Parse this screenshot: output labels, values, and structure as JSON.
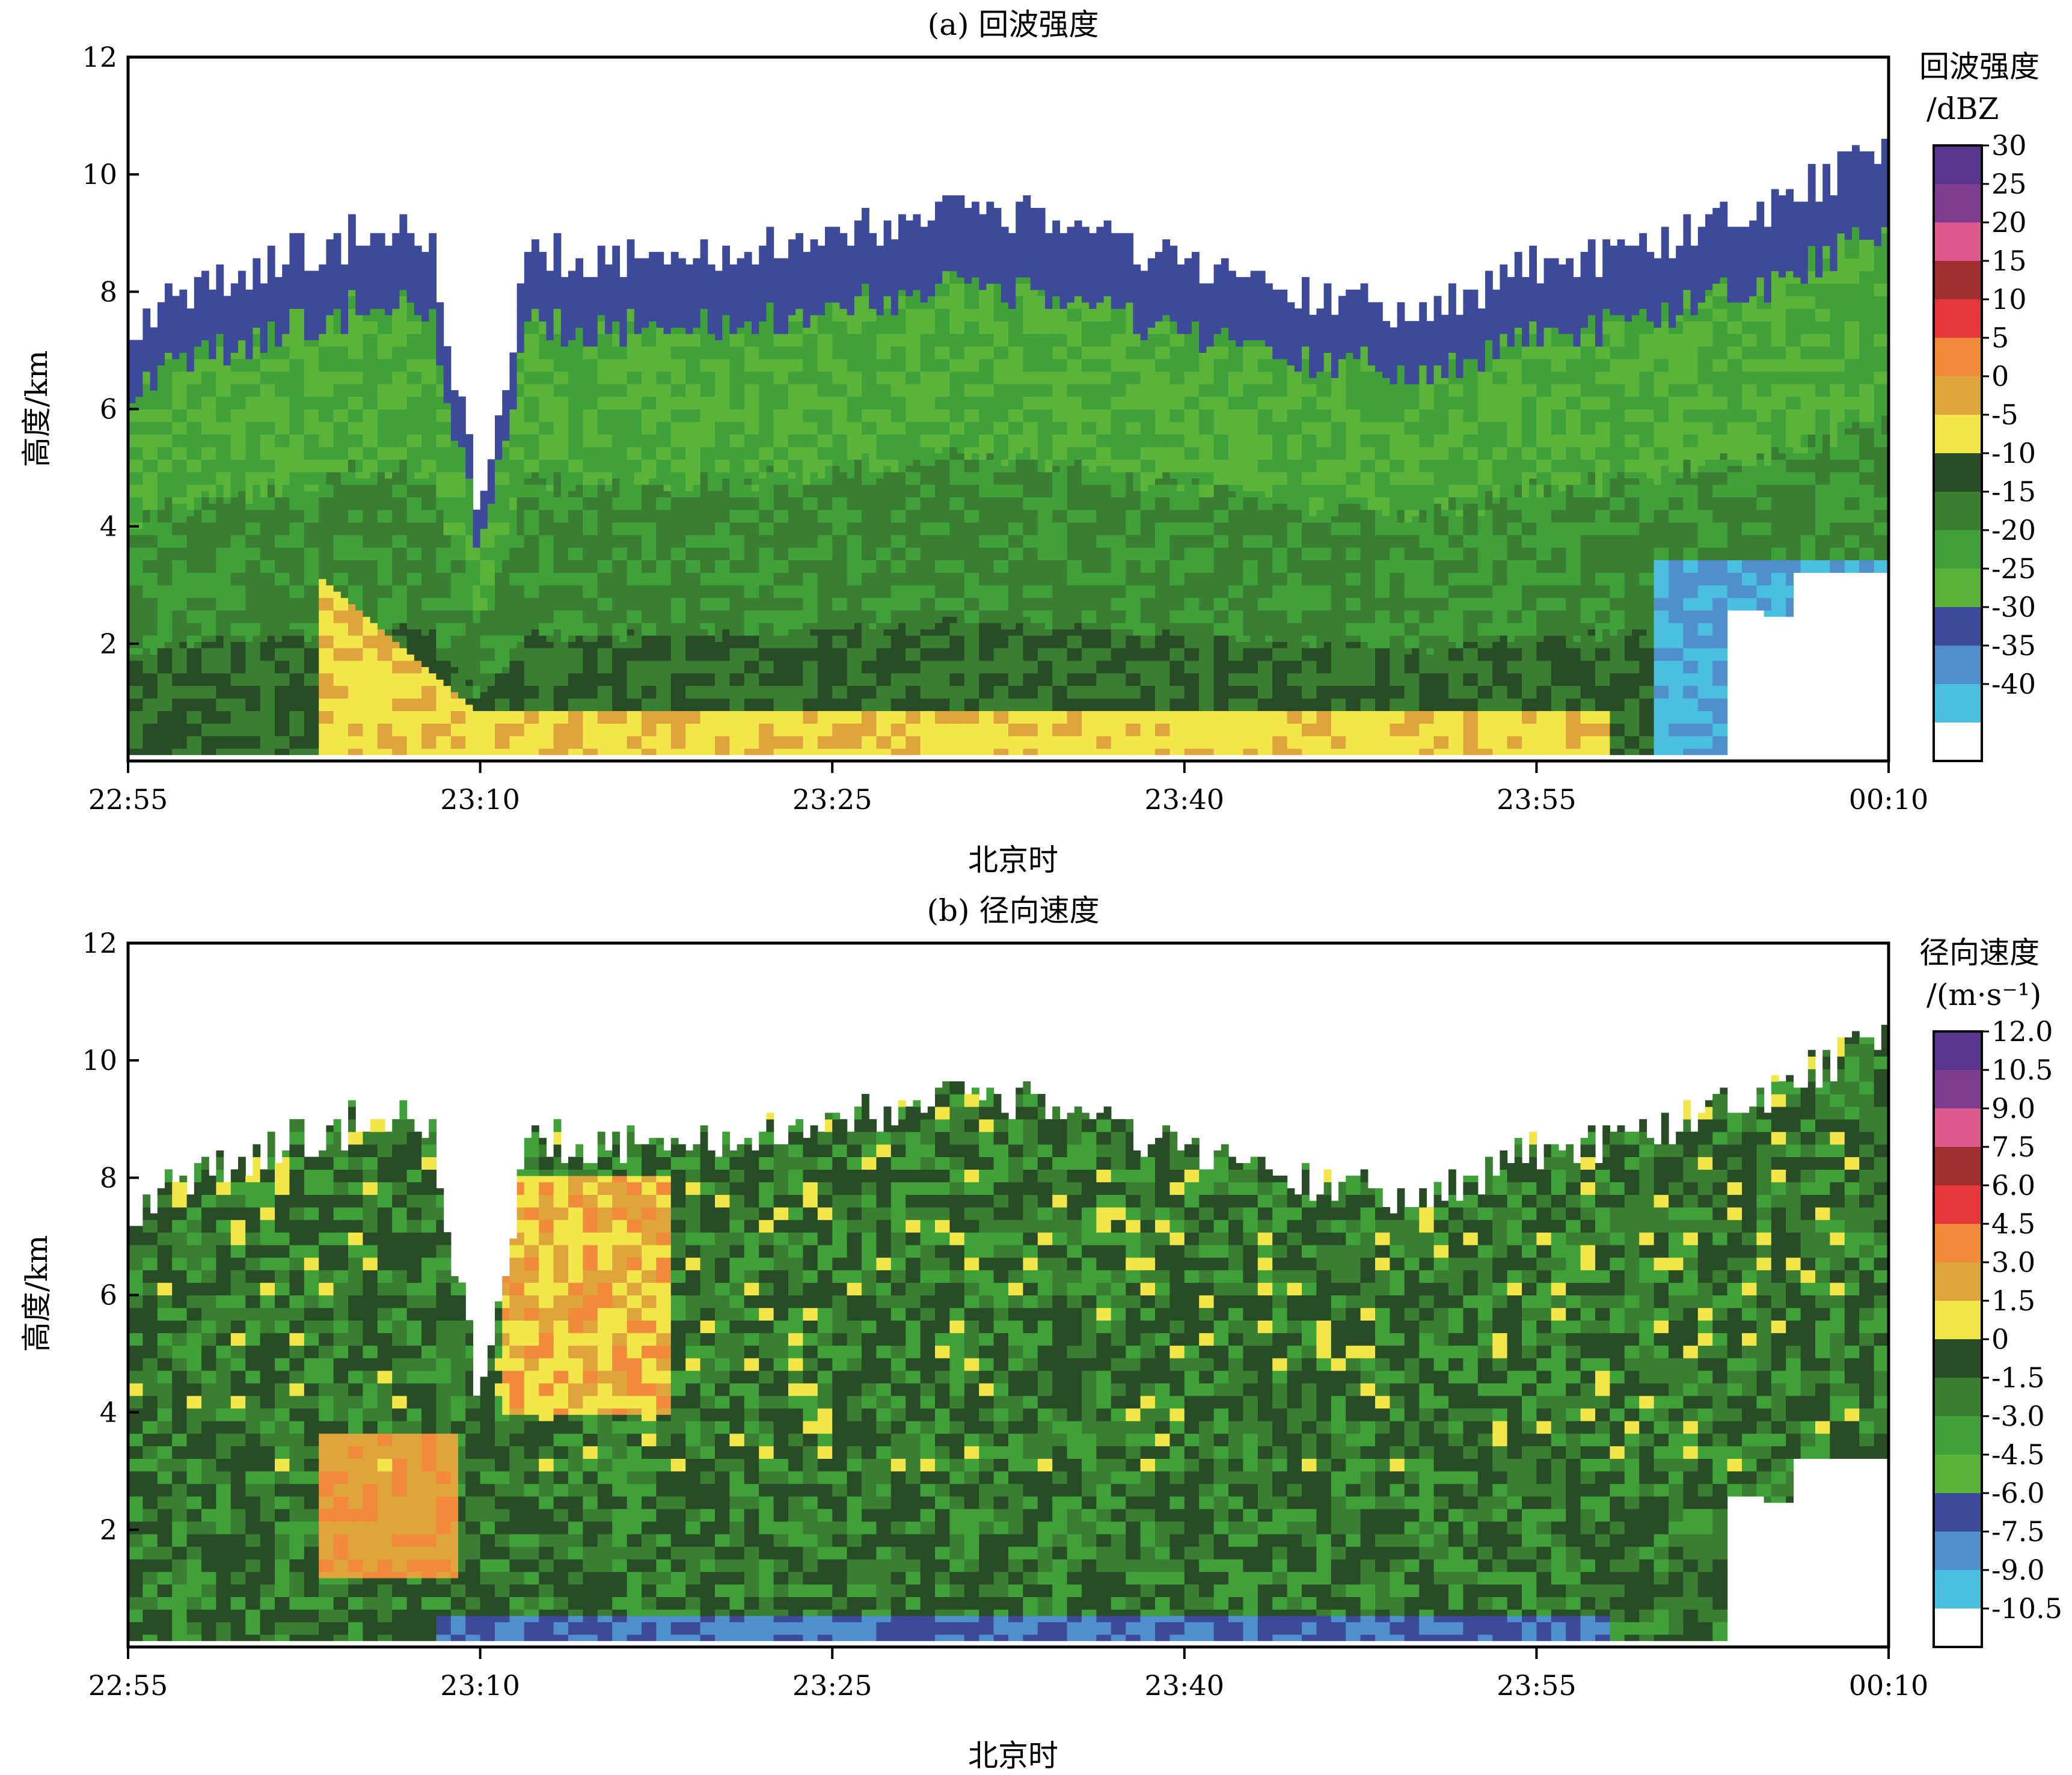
{
  "palettes": {
    "reflectivity": [
      "#ffffff",
      "#4bbfe0",
      "#4e8fcc",
      "#3d4a9a",
      "#5cb33a",
      "#40a03a",
      "#3a7e32",
      "#284d26",
      "#f2e64a",
      "#dea53c",
      "#f28a3c",
      "#e6383a",
      "#a03030",
      "#dd5a8c",
      "#7e3c8e",
      "#5a358e"
    ],
    "velocity": [
      "#ffffff",
      "#4bbfe0",
      "#4e8fcc",
      "#3d4a9a",
      "#5cb33a",
      "#40a03a",
      "#3a7e32",
      "#284d26",
      "#f2e64a",
      "#dea53c",
      "#f28a3c",
      "#e6383a",
      "#a03030",
      "#dd5a8c",
      "#7e3c8e",
      "#5a358e"
    ]
  },
  "panels": [
    {
      "id": "a",
      "title": "(a) 回波强度",
      "xlabel": "北京时",
      "ylabel": "高度/km",
      "x_ticks": [
        "22:55",
        "23:10",
        "23:25",
        "23:40",
        "23:55",
        "00:10"
      ],
      "y_ticks": [
        "2",
        "4",
        "6",
        "8",
        "10",
        "12"
      ],
      "colorbar_title": [
        "回波强度",
        "/dBZ"
      ],
      "colorbar_labels": [
        "30",
        "25",
        "20",
        "15",
        "10",
        "5",
        "0",
        "-5",
        "-10",
        "-15",
        "-20",
        "-25",
        "-30",
        "-35",
        "-40"
      ]
    },
    {
      "id": "b",
      "title": "(b) 径向速度",
      "xlabel": "北京时",
      "ylabel": "高度/km",
      "x_ticks": [
        "22:55",
        "23:10",
        "23:25",
        "23:40",
        "23:55",
        "00:10"
      ],
      "y_ticks": [
        "2",
        "4",
        "6",
        "8",
        "10",
        "12"
      ],
      "colorbar_title": [
        "径向速度",
        "/(m·s⁻¹)"
      ],
      "colorbar_labels": [
        "12.0",
        "10.5",
        "9.0",
        "7.5",
        "6.0",
        "4.5",
        "3.0",
        "1.5",
        "0",
        "-1.5",
        "-3.0",
        "-4.5",
        "-6.0",
        "-7.5",
        "-9.0",
        "-10.5"
      ]
    }
  ],
  "chart_data": [
    {
      "type": "heatmap",
      "title": "(a) 回波强度",
      "xlabel": "北京时",
      "ylabel": "高度/km",
      "x_range": [
        "22:55",
        "00:10"
      ],
      "ylim": [
        0,
        12
      ],
      "colorbar": {
        "title": "回波强度 /dBZ",
        "levels": [
          -40,
          -35,
          -30,
          -25,
          -20,
          -15,
          -10,
          -5,
          0,
          5,
          10,
          15,
          20,
          25,
          30
        ]
      },
      "echo_top_km": [
        {
          "time": "22:55",
          "top": 7.5
        },
        {
          "time": "23:00",
          "top": 8.4
        },
        {
          "time": "23:05",
          "top": 9.0
        },
        {
          "time": "23:08",
          "top": 8.9
        },
        {
          "time": "23:10",
          "top": 4.0
        },
        {
          "time": "23:12",
          "top": 8.7
        },
        {
          "time": "23:15",
          "top": 8.5
        },
        {
          "time": "23:20",
          "top": 8.6
        },
        {
          "time": "23:25",
          "top": 9.0
        },
        {
          "time": "23:30",
          "top": 9.4
        },
        {
          "time": "23:35",
          "top": 9.2
        },
        {
          "time": "23:40",
          "top": 8.5
        },
        {
          "time": "23:45",
          "top": 8.0
        },
        {
          "time": "23:50",
          "top": 7.6
        },
        {
          "time": "23:55",
          "top": 8.4
        },
        {
          "time": "00:00",
          "top": 8.8
        },
        {
          "time": "00:05",
          "top": 9.4
        },
        {
          "time": "00:10",
          "top": 10.6
        }
      ],
      "features": [
        {
          "time_start": "23:03",
          "time_end": "23:10",
          "alt_low": 0,
          "alt_high": 3.2,
          "dbz": "-5 to 5"
        },
        {
          "time_start": "23:10",
          "time_end": "00:00",
          "alt_low": 0,
          "alt_high": 0.8,
          "dbz": "-5 to 0"
        }
      ]
    },
    {
      "type": "heatmap",
      "title": "(b) 径向速度",
      "xlabel": "北京时",
      "ylabel": "高度/km",
      "x_range": [
        "22:55",
        "00:10"
      ],
      "ylim": [
        0,
        12
      ],
      "colorbar": {
        "title": "径向速度 /(m·s⁻¹)",
        "levels": [
          -10.5,
          -9.0,
          -7.5,
          -6.0,
          -4.5,
          -3.0,
          -1.5,
          0,
          1.5,
          3.0,
          4.5,
          6.0,
          7.5,
          9.0,
          10.5,
          12.0
        ]
      },
      "features": [
        {
          "time_start": "23:03",
          "time_end": "23:09",
          "alt_low": 1.5,
          "alt_high": 3.5,
          "velocity": "3.0 to 6.0"
        },
        {
          "time_start": "23:11",
          "time_end": "23:18",
          "alt_low": 4,
          "alt_high": 8,
          "velocity": "1.5 to 7.5"
        },
        {
          "time_start": "23:08",
          "time_end": "23:58",
          "alt_low": 0,
          "alt_high": 0.5,
          "velocity": "-9.0 to -6.0"
        }
      ]
    }
  ]
}
